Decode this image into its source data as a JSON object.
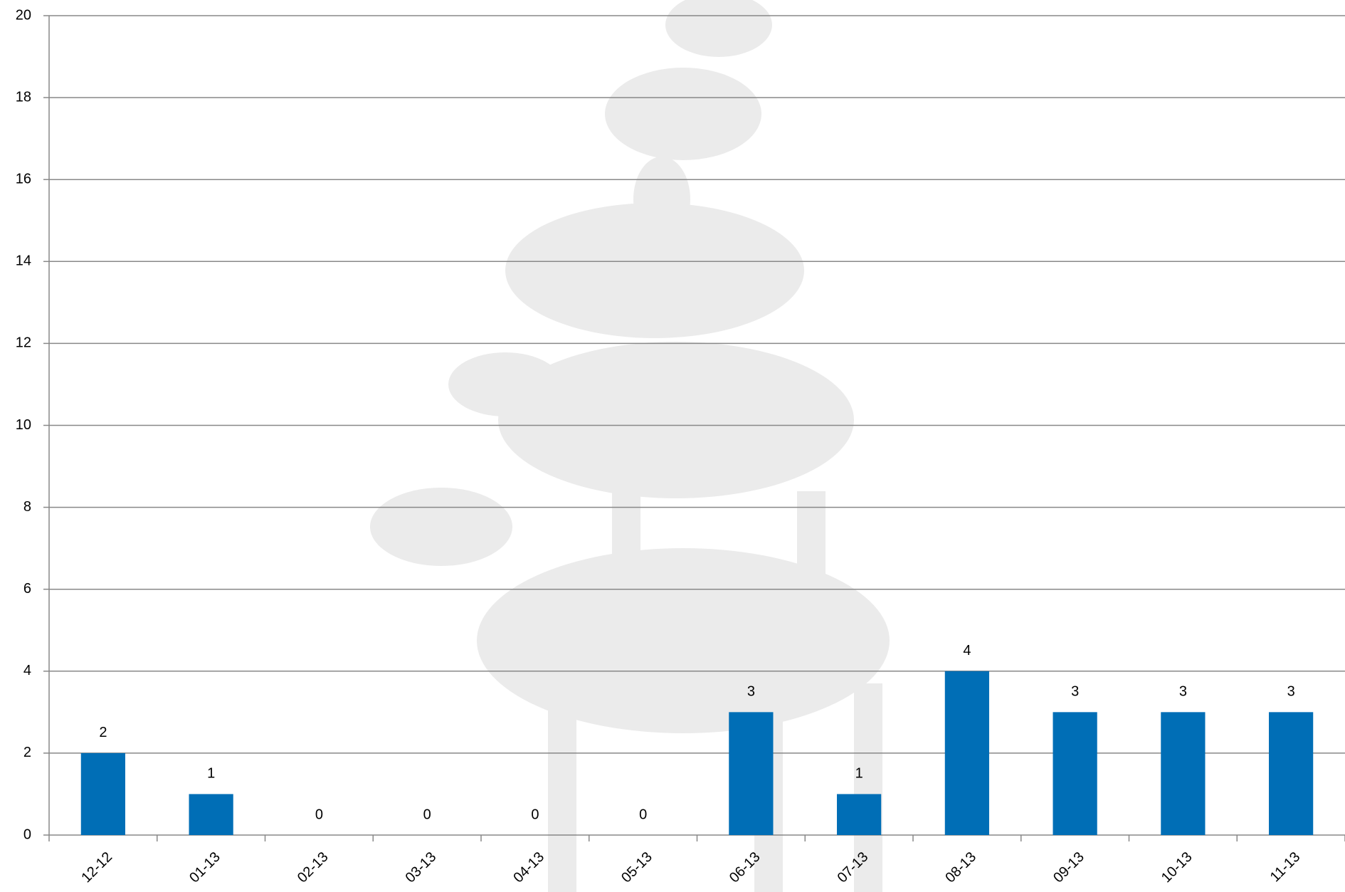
{
  "chart_data": {
    "type": "bar",
    "categories": [
      "12-12",
      "01-13",
      "02-13",
      "03-13",
      "04-13",
      "05-13",
      "06-13",
      "07-13",
      "08-13",
      "09-13",
      "10-13",
      "11-13"
    ],
    "values": [
      2,
      1,
      0,
      0,
      0,
      0,
      3,
      1,
      4,
      3,
      3,
      3
    ],
    "color": "#006eb6",
    "ylim": [
      0,
      20
    ],
    "yticks": [
      0,
      2,
      4,
      6,
      8,
      10,
      12,
      14,
      16,
      18,
      20
    ],
    "grid": true
  }
}
